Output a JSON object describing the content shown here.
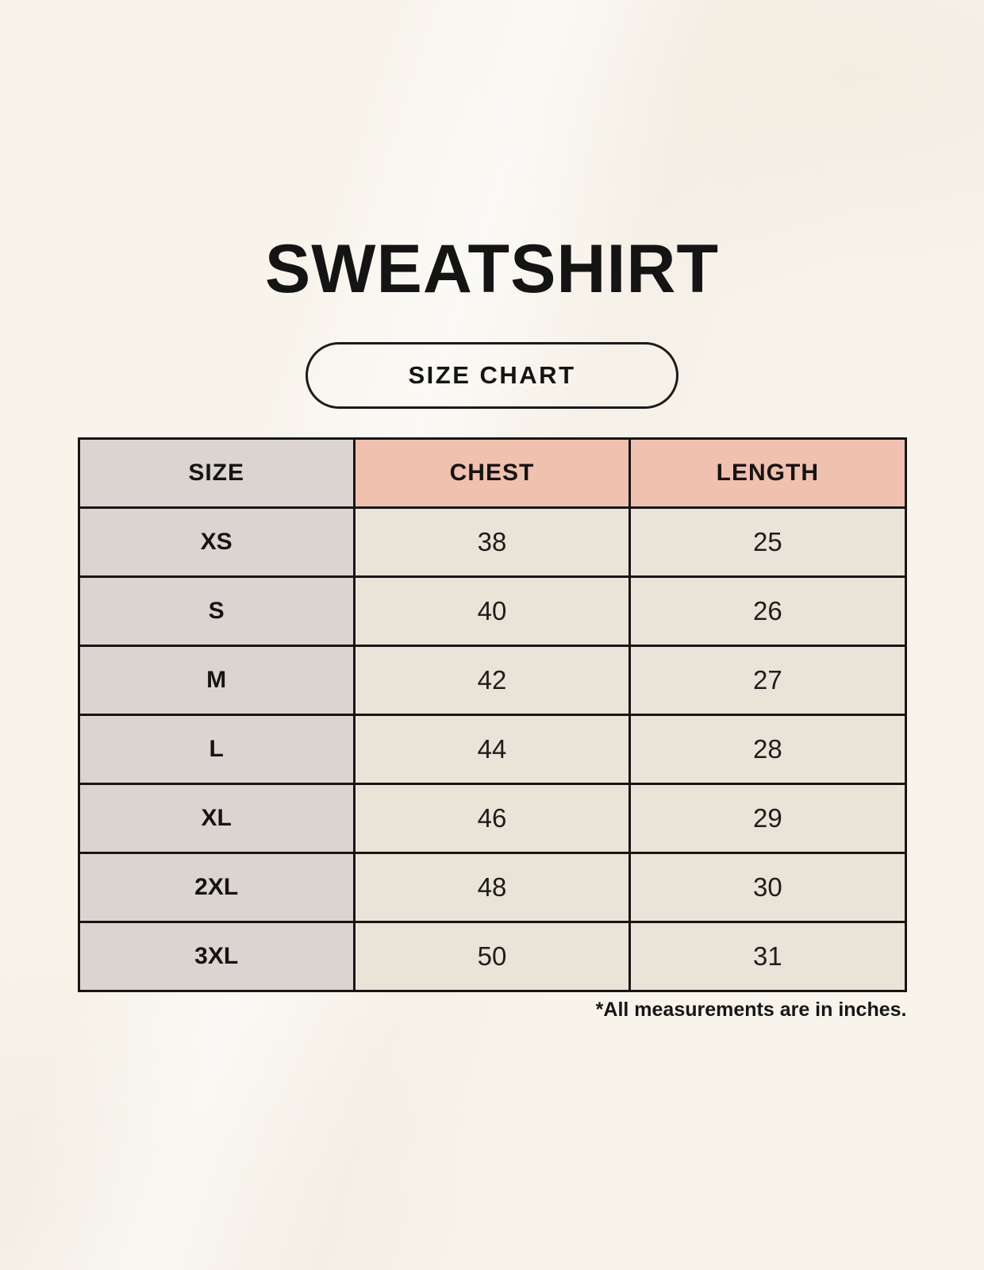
{
  "page": {
    "title": "SWEATSHIRT",
    "badge_label": "SIZE CHART",
    "footnote": "*All measurements are in inches."
  },
  "colors": {
    "page_background": "#f8f4ec",
    "header_accent_pink": "#f0c1ae",
    "size_column_gray": "#dcd4d0",
    "data_cell_beige": "#eae3d7",
    "table_border": "#161616",
    "text": "#1d1d1d"
  },
  "chart_data": {
    "type": "table",
    "title": "SWEATSHIRT",
    "subtitle": "SIZE CHART",
    "columns": [
      "SIZE",
      "CHEST",
      "LENGTH"
    ],
    "rows": [
      [
        "XS",
        "38",
        "25"
      ],
      [
        "S",
        "40",
        "26"
      ],
      [
        "M",
        "42",
        "27"
      ],
      [
        "L",
        "44",
        "28"
      ],
      [
        "XL",
        "46",
        "29"
      ],
      [
        "2XL",
        "48",
        "30"
      ],
      [
        "3XL",
        "50",
        "31"
      ]
    ],
    "units_note": "*All measurements are in inches.",
    "layout": {
      "header_cell_colors": [
        "gray",
        "pink",
        "pink"
      ],
      "size_column_color": "gray",
      "data_cell_color": "beige",
      "grid": "all-borders-black"
    }
  }
}
